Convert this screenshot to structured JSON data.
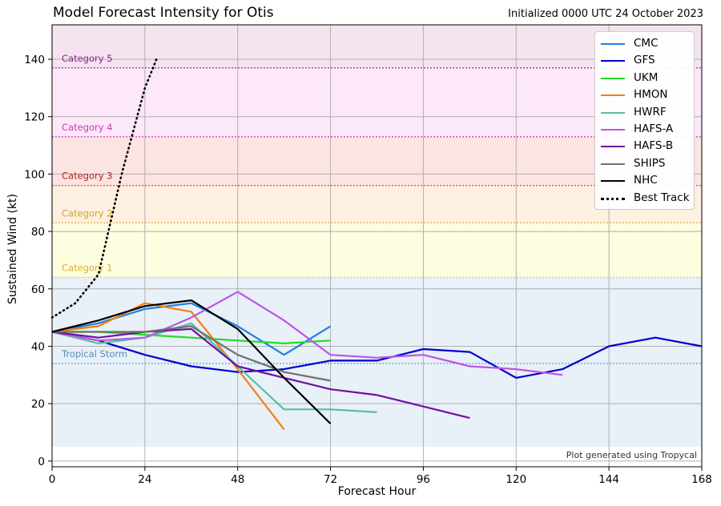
{
  "title": "Model Forecast Intensity for Otis",
  "subtitle": "Initialized 0000 UTC 24 October 2023",
  "credit": "Plot generated using Tropycal",
  "chart_data": {
    "type": "line",
    "xlabel": "Forecast Hour",
    "ylabel": "Sustained Wind (kt)",
    "xlim": [
      0,
      168
    ],
    "ylim": [
      -2,
      152
    ],
    "xticks": [
      0,
      24,
      48,
      72,
      96,
      120,
      144,
      168
    ],
    "yticks": [
      0,
      20,
      40,
      60,
      80,
      100,
      120,
      140
    ],
    "grid": true,
    "legend_position": "top-right",
    "categories": [
      {
        "label": "Tropical Storm",
        "threshold": 34,
        "ymin": 5,
        "ymax": 64,
        "fill": "#e8f0f8",
        "line": "#6ea8d8",
        "label_color": "#5a8db8"
      },
      {
        "label": "Category 1",
        "threshold": 64,
        "ymin": 64,
        "ymax": 83,
        "fill": "#fdfde0",
        "line": "#e0d060",
        "label_color": "#d8b030"
      },
      {
        "label": "Category 2",
        "threshold": 83,
        "ymin": 83,
        "ymax": 96,
        "fill": "#fdf0e0",
        "line": "#e8b050",
        "label_color": "#d8a030"
      },
      {
        "label": "Category 3",
        "threshold": 96,
        "ymin": 96,
        "ymax": 113,
        "fill": "#fbe4e2",
        "line": "#d84040",
        "label_color": "#b02020"
      },
      {
        "label": "Category 4",
        "threshold": 113,
        "ymin": 113,
        "ymax": 137,
        "fill": "#fce8f8",
        "line": "#d040c0",
        "label_color": "#c040b0"
      },
      {
        "label": "Category 5",
        "threshold": 137,
        "ymin": 137,
        "ymax": 152,
        "fill": "#f5e4f0",
        "line": "#a020a0",
        "label_color": "#902090"
      }
    ],
    "series": [
      {
        "name": "CMC",
        "color": "#1f80e0",
        "x": [
          0,
          12,
          24,
          36,
          48,
          60,
          72
        ],
        "y": [
          45,
          48,
          53,
          55,
          47,
          37,
          47
        ]
      },
      {
        "name": "GFS",
        "color": "#0000cc",
        "x": [
          0,
          12,
          24,
          36,
          48,
          60,
          72,
          84,
          96,
          108,
          120,
          132,
          144,
          156,
          168
        ],
        "y": [
          45,
          42,
          37,
          33,
          31,
          32,
          35,
          35,
          39,
          38,
          29,
          32,
          40,
          43,
          40
        ]
      },
      {
        "name": "UKM",
        "color": "#22dd22",
        "x": [
          0,
          12,
          24,
          36,
          48,
          60,
          72
        ],
        "y": [
          45,
          45,
          44,
          43,
          42,
          41,
          42
        ]
      },
      {
        "name": "HMON",
        "color": "#f08010",
        "x": [
          0,
          12,
          24,
          36,
          48,
          60
        ],
        "y": [
          45,
          47,
          55,
          52,
          32,
          11
        ]
      },
      {
        "name": "HWRF",
        "color": "#55c0a0",
        "x": [
          0,
          12,
          24,
          36,
          48,
          60,
          72,
          84
        ],
        "y": [
          45,
          41,
          43,
          48,
          33,
          18,
          18,
          17
        ]
      },
      {
        "name": "HAFS-A",
        "color": "#bb55e6",
        "x": [
          0,
          12,
          24,
          36,
          48,
          60,
          72,
          84,
          96,
          108,
          120,
          132
        ],
        "y": [
          45,
          42,
          43,
          50,
          59,
          49,
          37,
          36,
          37,
          33,
          32,
          30
        ]
      },
      {
        "name": "HAFS-B",
        "color": "#7010a0",
        "x": [
          0,
          12,
          24,
          36,
          48,
          60,
          72,
          84,
          96,
          108
        ],
        "y": [
          45,
          43,
          45,
          46,
          33,
          29,
          25,
          23,
          19,
          15
        ]
      },
      {
        "name": "SHIPS",
        "color": "#707070",
        "x": [
          0,
          12,
          24,
          36,
          48,
          60,
          72
        ],
        "y": [
          45,
          45,
          45,
          47,
          37,
          31,
          28
        ]
      },
      {
        "name": "NHC",
        "color": "#000000",
        "x": [
          0,
          12,
          24,
          36,
          48,
          60,
          72
        ],
        "y": [
          45,
          49,
          54,
          56,
          46,
          29,
          13
        ]
      },
      {
        "name": "Best Track",
        "color": "#000000",
        "dashed": true,
        "x": [
          0,
          6,
          12,
          18,
          24,
          27
        ],
        "y": [
          50,
          55,
          65,
          100,
          130,
          140
        ]
      }
    ]
  }
}
